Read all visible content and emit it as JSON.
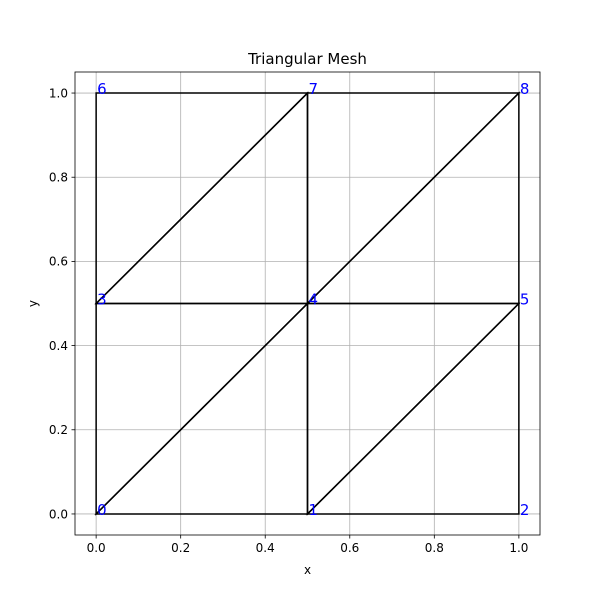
{
  "chart_data": {
    "type": "mesh",
    "title": "Triangular Mesh",
    "xlabel": "x",
    "ylabel": "y",
    "xlim": [
      -0.05,
      1.05
    ],
    "ylim": [
      -0.05,
      1.05
    ],
    "grid": true,
    "xticks": [
      0.0,
      0.2,
      0.4,
      0.6,
      0.8,
      1.0
    ],
    "yticks": [
      0.0,
      0.2,
      0.4,
      0.6,
      0.8,
      1.0
    ],
    "xtick_labels": [
      "0.0",
      "0.2",
      "0.4",
      "0.6",
      "0.8",
      "1.0"
    ],
    "ytick_labels": [
      "0.0",
      "0.2",
      "0.4",
      "0.6",
      "0.8",
      "1.0"
    ],
    "nodes": [
      {
        "id": 0,
        "label": "0",
        "x": 0.0,
        "y": 0.0
      },
      {
        "id": 1,
        "label": "1",
        "x": 0.5,
        "y": 0.0
      },
      {
        "id": 2,
        "label": "2",
        "x": 1.0,
        "y": 0.0
      },
      {
        "id": 3,
        "label": "3",
        "x": 0.0,
        "y": 0.5
      },
      {
        "id": 4,
        "label": "4",
        "x": 0.5,
        "y": 0.5
      },
      {
        "id": 5,
        "label": "5",
        "x": 1.0,
        "y": 0.5
      },
      {
        "id": 6,
        "label": "6",
        "x": 0.0,
        "y": 1.0
      },
      {
        "id": 7,
        "label": "7",
        "x": 0.5,
        "y": 1.0
      },
      {
        "id": 8,
        "label": "8",
        "x": 1.0,
        "y": 1.0
      }
    ],
    "triangles": [
      [
        0,
        1,
        4
      ],
      [
        0,
        4,
        3
      ],
      [
        1,
        2,
        5
      ],
      [
        1,
        5,
        4
      ],
      [
        3,
        4,
        7
      ],
      [
        3,
        7,
        6
      ],
      [
        4,
        5,
        8
      ],
      [
        4,
        8,
        7
      ]
    ],
    "colors": {
      "edge": "#000000",
      "node_label": "#0000ff",
      "grid": "#b0b0b0"
    }
  }
}
